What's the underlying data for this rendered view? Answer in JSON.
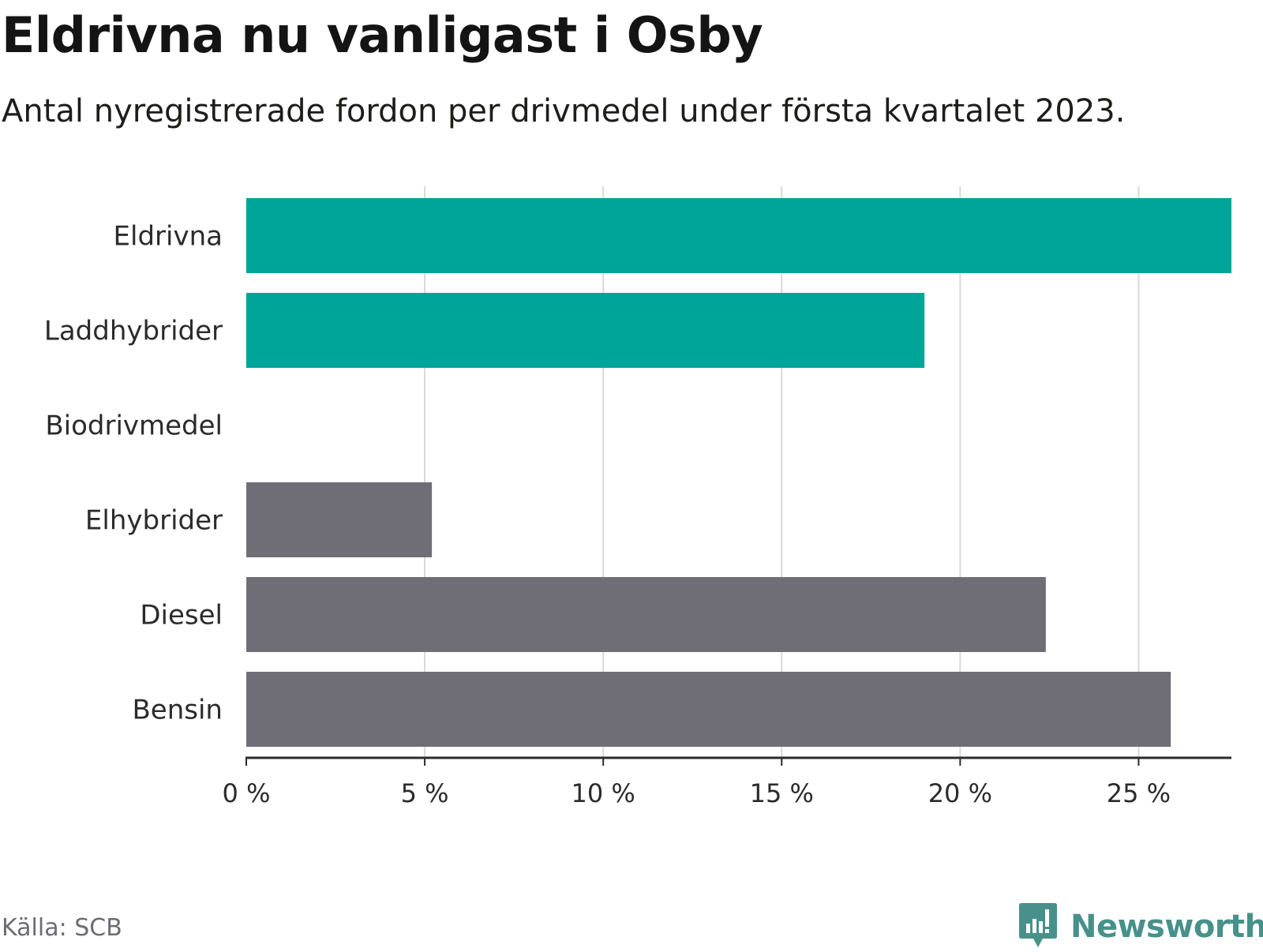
{
  "header": {
    "title": "Eldrivna nu vanligast i Osby",
    "subtitle": "Antal nyregistrerade fordon per drivmedel under första kvartalet 2023."
  },
  "footer": {
    "source": "Källa: SCB",
    "brand": "Newsworthy",
    "brand_icon": "bar-chart-speech-bubble-icon"
  },
  "colors": {
    "highlight": "#00a59a",
    "neutral": "#6f6e77",
    "grid": "#d9d9d9",
    "axis": "#2b2b2b",
    "brand": "#47918a"
  },
  "chart_data": {
    "type": "bar",
    "orientation": "horizontal",
    "categories": [
      "Eldrivna",
      "Laddhybrider",
      "Biodrivmedel",
      "Elhybrider",
      "Diesel",
      "Bensin"
    ],
    "values": [
      27.6,
      19.0,
      0,
      5.2,
      22.4,
      25.9
    ],
    "highlighted": [
      true,
      true,
      false,
      false,
      false,
      false
    ],
    "x_ticks": [
      0,
      5,
      10,
      15,
      20,
      25
    ],
    "x_tick_labels": [
      "0 %",
      "5 %",
      "10 %",
      "15 %",
      "20 %",
      "25 %"
    ],
    "xlim": [
      0,
      27.6
    ],
    "grid": "vertical",
    "legend": "none"
  }
}
